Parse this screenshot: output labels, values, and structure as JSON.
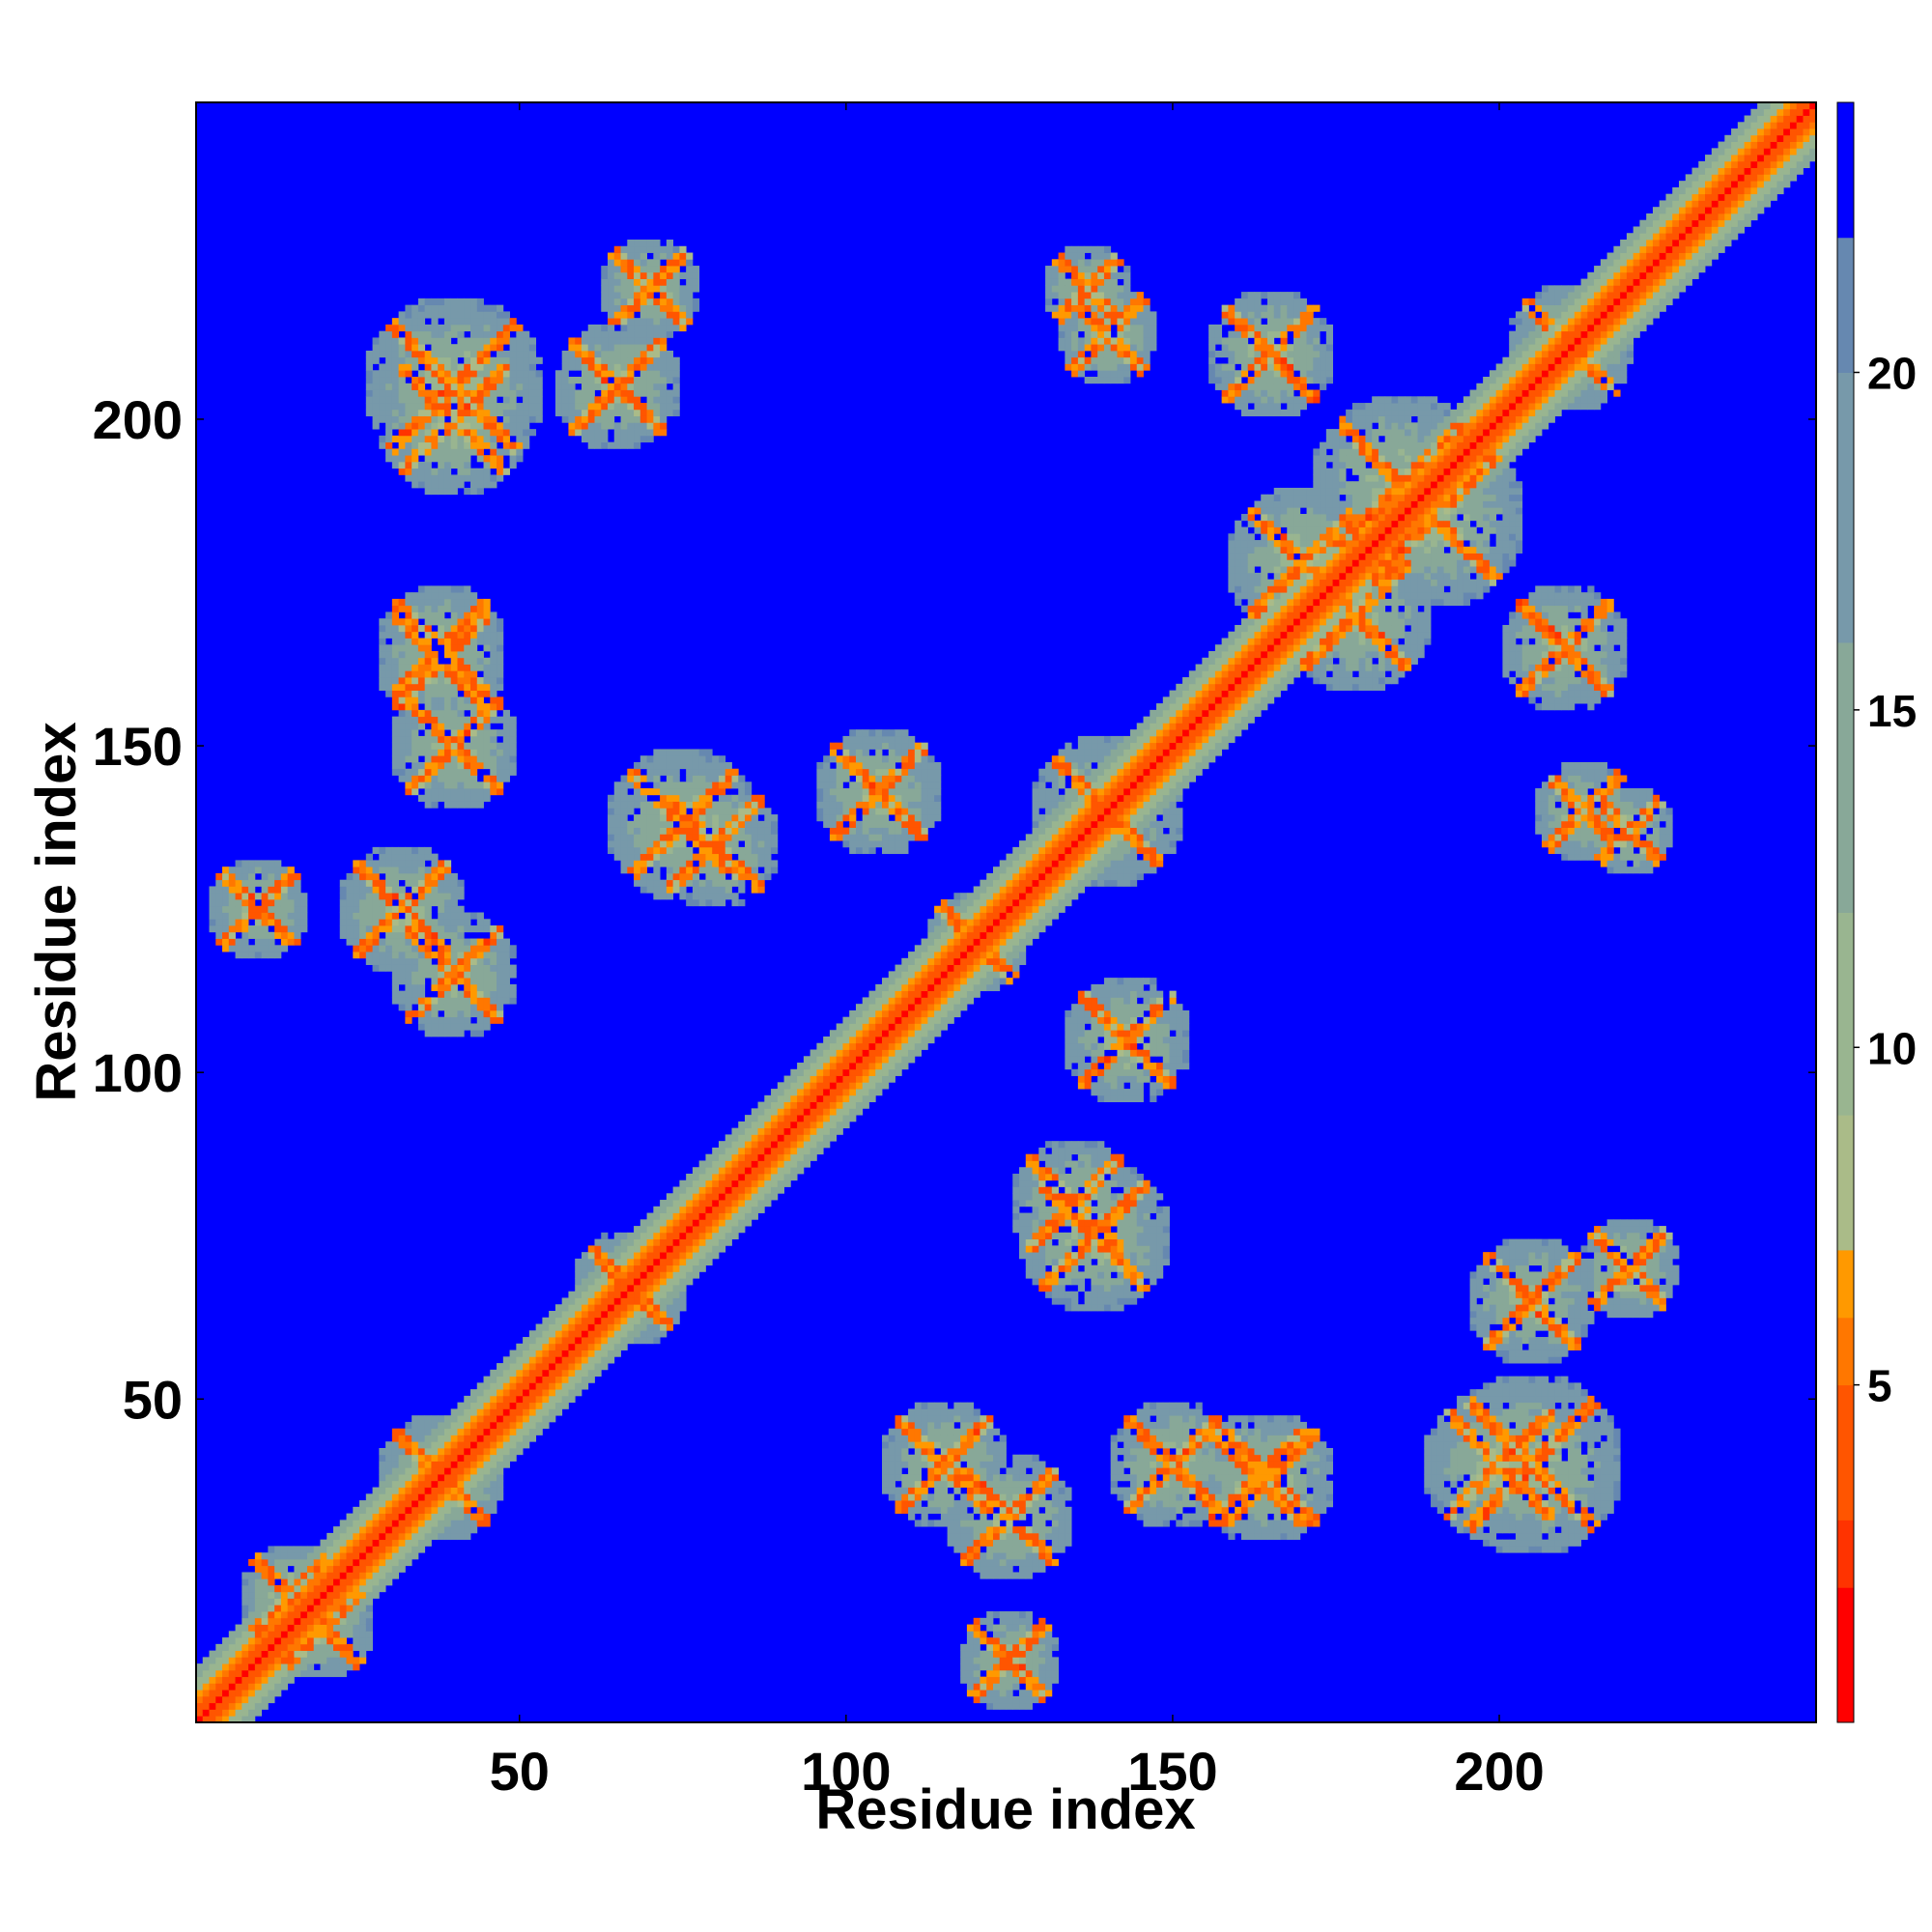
{
  "chart_data": {
    "type": "heatmap",
    "title": "",
    "xlabel": "Residue index",
    "ylabel": "Residue index",
    "xlim": [
      1,
      248
    ],
    "ylim": [
      1,
      248
    ],
    "xticks": [
      50,
      100,
      150,
      200
    ],
    "yticks": [
      50,
      100,
      150,
      200
    ],
    "colorbar": {
      "range": [
        0,
        24
      ],
      "ticks": [
        5,
        10,
        15,
        20
      ],
      "levels": [
        {
          "from": 0,
          "to": 2,
          "color": "#ff0000"
        },
        {
          "from": 2,
          "to": 3,
          "color": "#ff3300"
        },
        {
          "from": 3,
          "to": 5,
          "color": "#ff5500"
        },
        {
          "from": 5,
          "to": 6,
          "color": "#ff7700"
        },
        {
          "from": 6,
          "to": 7,
          "color": "#ff9900"
        },
        {
          "from": 7,
          "to": 9,
          "color": "#aabb88"
        },
        {
          "from": 9,
          "to": 12,
          "color": "#99b590"
        },
        {
          "from": 12,
          "to": 16,
          "color": "#88a898"
        },
        {
          "from": 16,
          "to": 20,
          "color": "#7799aa"
        },
        {
          "from": 20,
          "to": 22,
          "color": "#6688b0"
        },
        {
          "from": 22,
          "to": 24,
          "color": "#0000ff"
        }
      ]
    },
    "background_value": 24,
    "description_of_structure": "Symmetric residue-residue distance map: red main diagonal (distance ~0), orange/green bands along diagonal, off-diagonal contact clusters (X-shaped crossings) shown in green/orange, all other pairs saturated blue.",
    "contact_clusters": [
      {
        "center": [
          38,
          38
        ],
        "radius": 10
      },
      {
        "center": [
          67,
          67
        ],
        "radius": 9
      },
      {
        "center": [
          140,
          140
        ],
        "radius": 12
      },
      {
        "center": [
          211,
          211
        ],
        "radius": 10
      },
      {
        "center": [
          40,
          205
        ],
        "radius": 14
      },
      {
        "center": [
          38,
          163
        ],
        "radius": 10
      },
      {
        "center": [
          32,
          125
        ],
        "radius": 10
      },
      {
        "center": [
          75,
          138
        ],
        "radius": 12
      },
      {
        "center": [
          105,
          143
        ],
        "radius": 10
      },
      {
        "center": [
          120,
          120
        ],
        "radius": 8
      },
      {
        "center": [
          135,
          80
        ],
        "radius": 10
      },
      {
        "center": [
          150,
          40
        ],
        "radius": 10
      },
      {
        "center": [
          125,
          10
        ],
        "radius": 8
      },
      {
        "center": [
          165,
          38
        ],
        "radius": 10
      },
      {
        "center": [
          200,
          40
        ],
        "radius": 12
      },
      {
        "center": [
          205,
          65
        ],
        "radius": 10
      },
      {
        "center": [
          213,
          140
        ],
        "radius": 8
      },
      {
        "center": [
          70,
          220
        ],
        "radius": 8
      },
      {
        "center": [
          137,
          220
        ],
        "radius": 7
      },
      {
        "center": [
          185,
          190
        ],
        "radius": 14
      },
      {
        "center": [
          170,
          178
        ],
        "radius": 12
      },
      {
        "center": [
          20,
          15
        ],
        "radius": 8
      },
      {
        "center": [
          115,
          40
        ],
        "radius": 10
      },
      {
        "center": [
          10,
          125
        ],
        "radius": 5
      },
      {
        "center": [
          165,
          210
        ],
        "radius": 10
      }
    ]
  }
}
